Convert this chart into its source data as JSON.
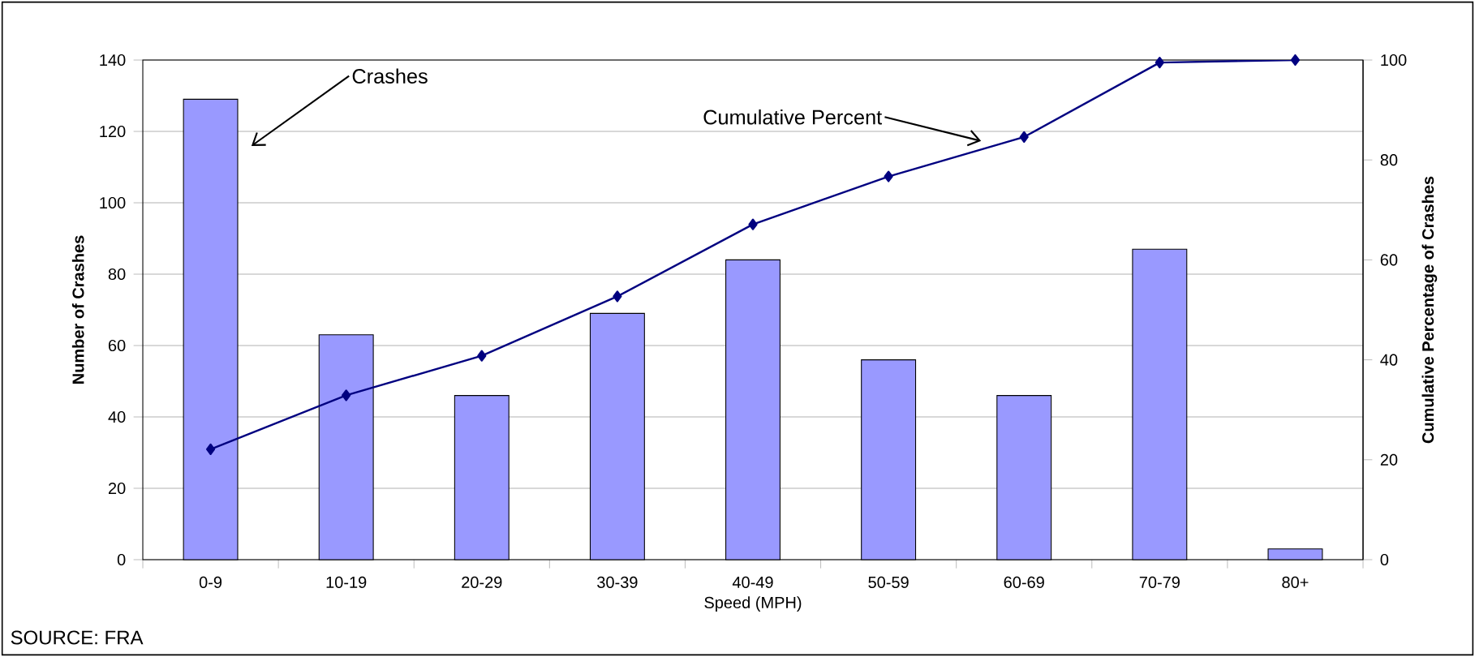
{
  "chart_data": {
    "type": "bar",
    "categories": [
      "0-9",
      "10-19",
      "20-29",
      "30-39",
      "40-49",
      "50-59",
      "60-69",
      "70-79",
      "80+"
    ],
    "series": [
      {
        "color": "#9999ff",
        "values": [
          129,
          63,
          46,
          69,
          84,
          56,
          46,
          87,
          3
        ]
      },
      {
        "type": "line",
        "axis": "y2",
        "color": "#000080",
        "values": [
          22.1,
          32.9,
          40.8,
          52.7,
          67.1,
          76.7,
          84.6,
          99.5,
          100
        ]
      }
    ],
    "xlabel": "Speed (MPH)",
    "ylabel": "Number of Crashes",
    "y2label": "Cumulative Percentage of Crashes",
    "ylim": [
      0,
      140
    ],
    "yticks": [
      0,
      20,
      40,
      60,
      80,
      100,
      120,
      140
    ],
    "y2lim": [
      0,
      100
    ],
    "y2ticks": [
      0,
      20,
      40,
      60,
      80,
      100
    ],
    "grid": "y",
    "marker": "diamond",
    "line_style": "solid",
    "annotations": [
      "Crashes",
      "Cumulative Percent",
      "SOURCE: FRA"
    ]
  }
}
